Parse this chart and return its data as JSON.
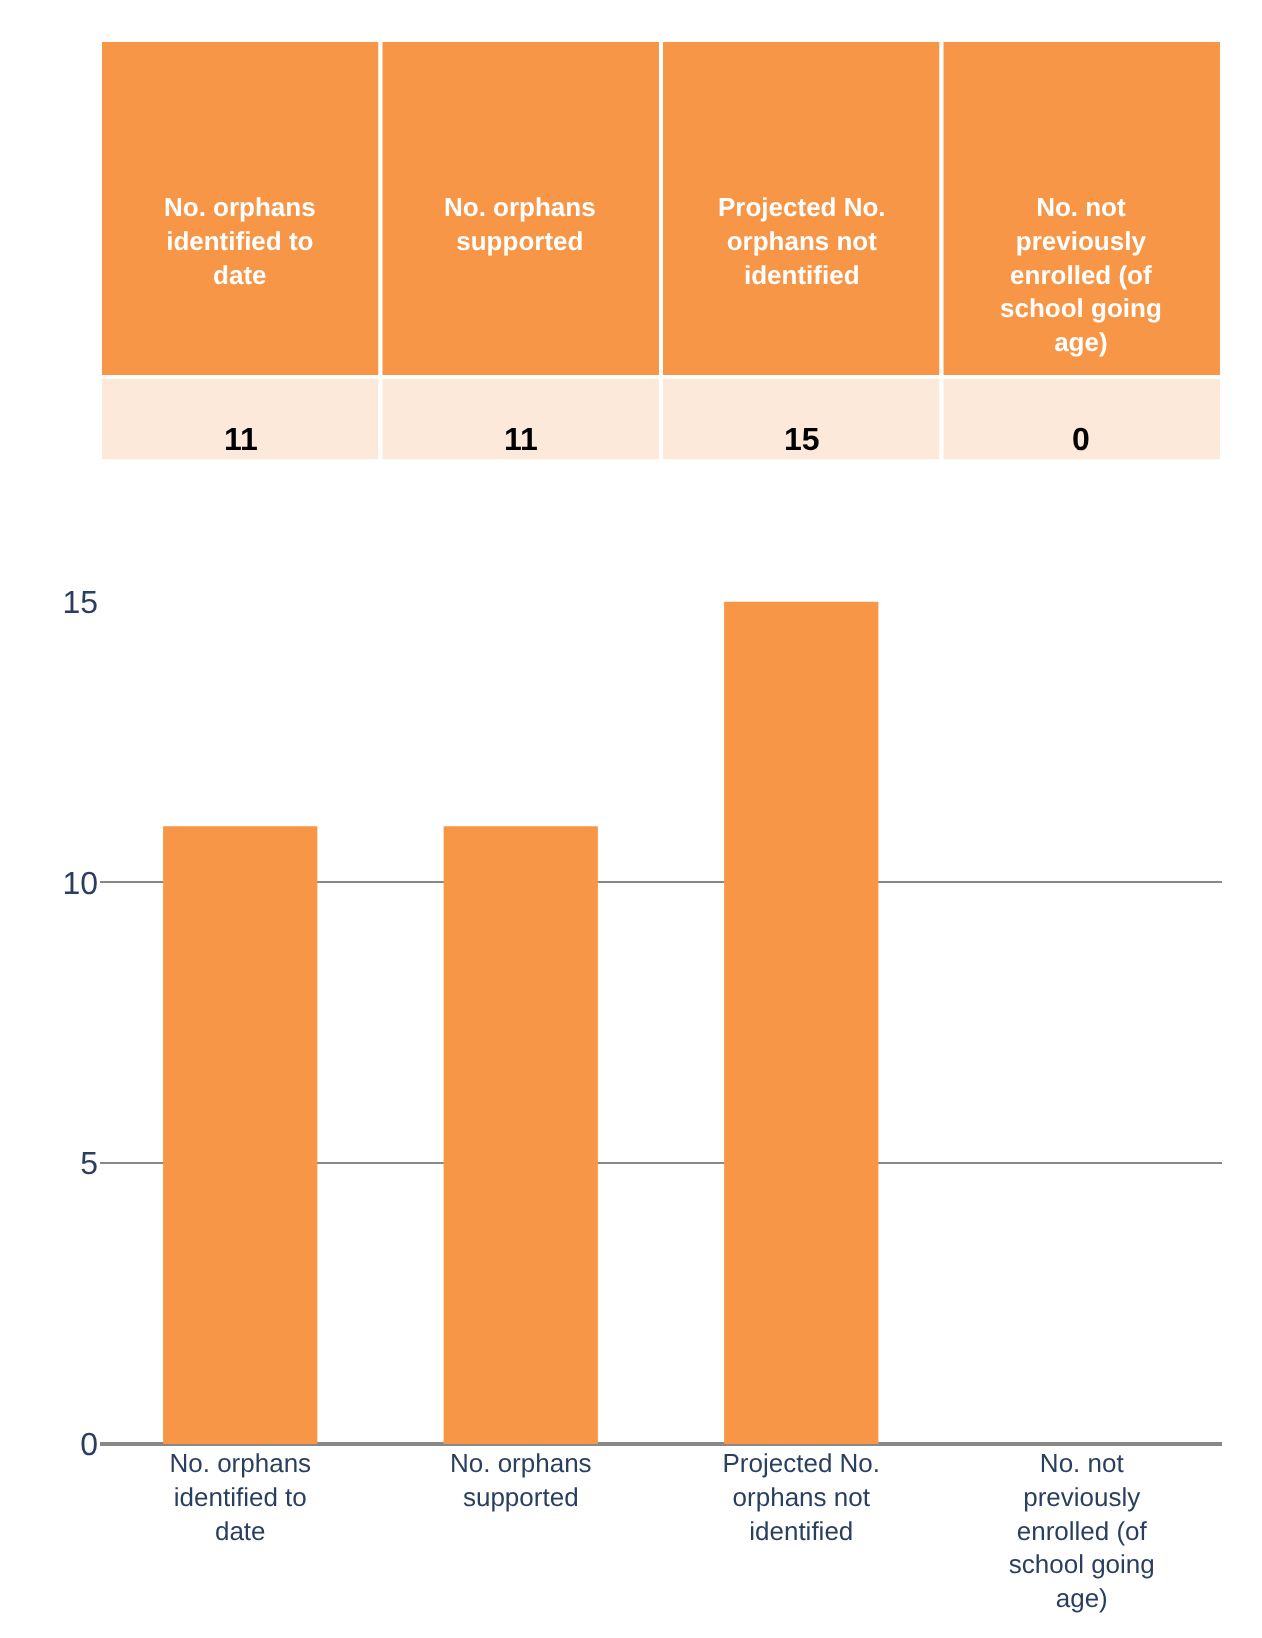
{
  "chart_data": {
    "type": "bar",
    "categories": [
      "No. orphans identified to date",
      "No. orphans supported",
      "Projected No. orphans not identified",
      "No. not previously enrolled (of school going age)"
    ],
    "annotations": [
      "No. orphans identified to date",
      "No. orphans supported",
      "Projected No. orphans not identified",
      "No. not previously enrolled (of school going age)"
    ],
    "values": [
      11,
      11,
      15,
      0
    ],
    "color": "#f79646",
    "ylim": [
      0,
      15
    ],
    "yticks": [
      0,
      5,
      10,
      15
    ],
    "grid": "y",
    "data_labels": true,
    "legend": false
  }
}
